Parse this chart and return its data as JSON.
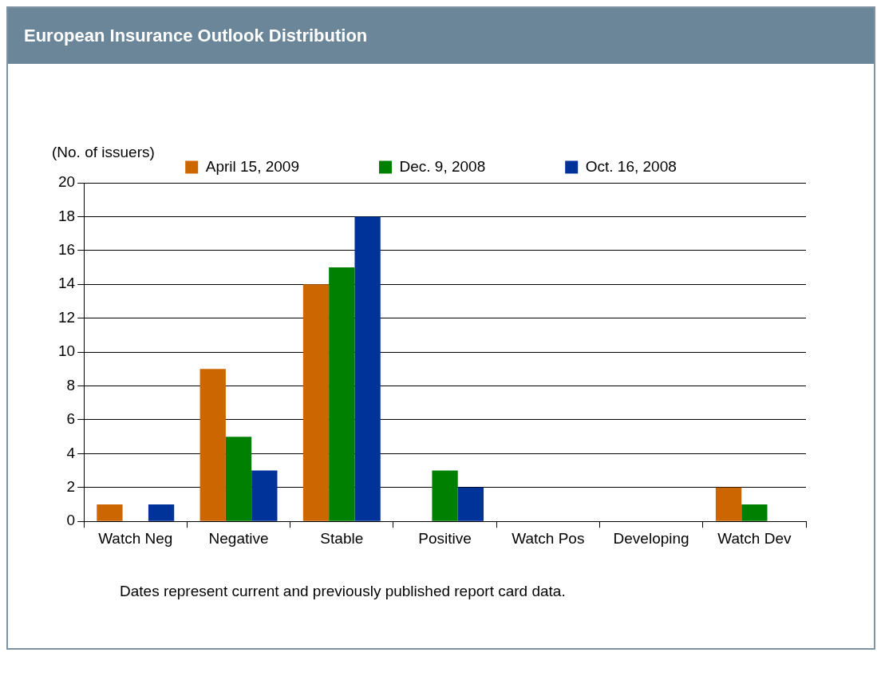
{
  "chart_data": {
    "type": "bar",
    "title": "European Insurance Outlook Distribution",
    "ylabel": "(No. of issuers)",
    "categories": [
      "Watch Neg",
      "Negative",
      "Stable",
      "Positive",
      "Watch Pos",
      "Developing",
      "Watch Dev"
    ],
    "series": [
      {
        "name": "April 15, 2009",
        "color": "#cc6600",
        "values": [
          1,
          9,
          14,
          0,
          0,
          0,
          2
        ]
      },
      {
        "name": "Dec. 9, 2008",
        "color": "#008000",
        "values": [
          0,
          5,
          15,
          3,
          0,
          0,
          1
        ]
      },
      {
        "name": "Oct. 16, 2008",
        "color": "#003399",
        "values": [
          1,
          3,
          18,
          2,
          0,
          0,
          0
        ]
      }
    ],
    "ylim": [
      0,
      20
    ],
    "yticks": [
      0,
      2,
      4,
      6,
      8,
      10,
      12,
      14,
      16,
      18,
      20
    ],
    "grid": "y",
    "legend": "top",
    "annotations": [
      "Dates represent current and previously published report card data."
    ]
  }
}
